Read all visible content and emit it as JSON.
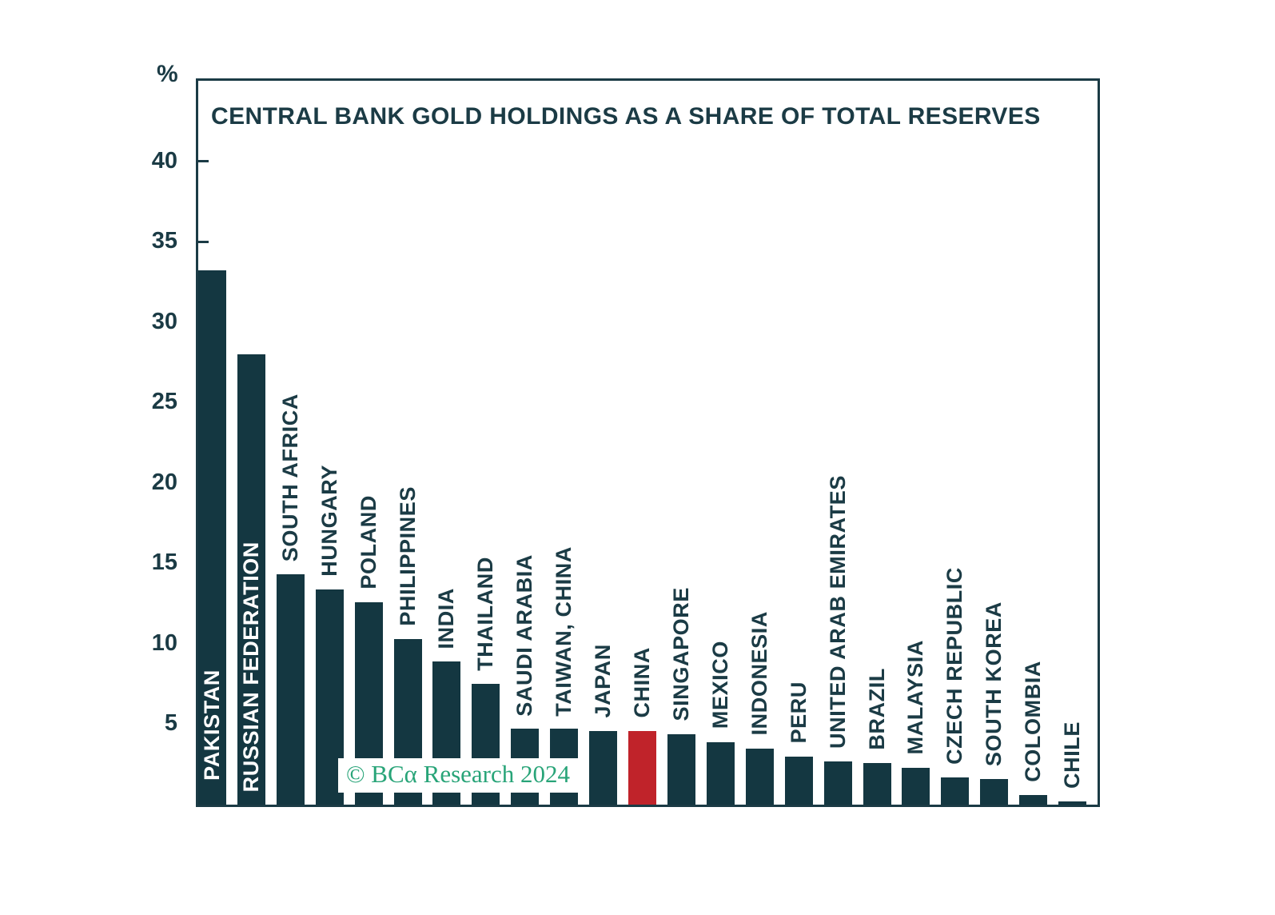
{
  "chart": {
    "title": "CENTRAL BANK GOLD HOLDINGS AS A SHARE OF TOTAL RESERVES",
    "unit_label": "%",
    "watermark_text": "© BCα Research 2024"
  },
  "colors": {
    "ink": "#1B3B45",
    "bar": "#143741",
    "highlight_red": "#C0232A",
    "watermark_green": "#28A478"
  },
  "axis": {
    "ticks": [
      40,
      35,
      30,
      25,
      20,
      15,
      10,
      5
    ]
  },
  "chart_data": {
    "type": "bar",
    "title": "CENTRAL BANK GOLD HOLDINGS AS A SHARE OF TOTAL RESERVES",
    "xlabel": "",
    "ylabel": "%",
    "ylim": [
      0,
      45
    ],
    "grid": false,
    "legend": "none",
    "categories": [
      "PAKISTAN",
      "RUSSIAN FEDERATION",
      "SOUTH AFRICA",
      "HUNGARY",
      "POLAND",
      "PHILIPPINES",
      "INDIA",
      "THAILAND",
      "SAUDI ARABIA",
      "TAIWAN, CHINA",
      "JAPAN",
      "CHINA",
      "SINGAPORE",
      "MEXICO",
      "INDONESIA",
      "PERU",
      "UNITED ARAB EMIRATES",
      "BRAZIL",
      "MALAYSIA",
      "CZECH REPUBLIC",
      "SOUTH KOREA",
      "COLOMBIA",
      "CHILE"
    ],
    "values": [
      33.2,
      28.0,
      14.3,
      13.4,
      12.6,
      10.3,
      8.9,
      7.5,
      4.7,
      4.7,
      4.6,
      4.6,
      4.4,
      3.9,
      3.5,
      3.0,
      2.7,
      2.6,
      2.3,
      1.7,
      1.6,
      0.6,
      0.2
    ],
    "bar_color": "#143741",
    "highlight_category": "CHINA",
    "highlight_color": "#C0232A",
    "label_placement": {
      "inside_white_labels": [
        "PAKISTAN",
        "RUSSIAN FEDERATION"
      ]
    }
  }
}
